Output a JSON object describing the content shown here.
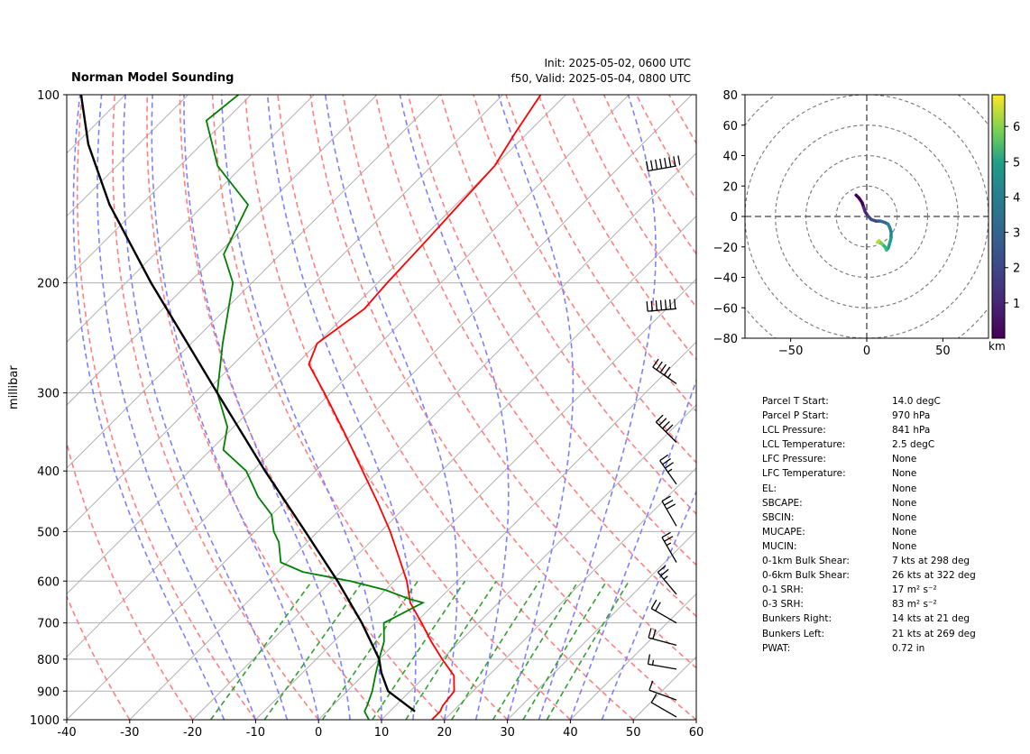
{
  "titles": {
    "left": "Norman Model Sounding",
    "init": "Init: 2025-05-02, 0600 UTC",
    "valid": "f50, Valid: 2025-05-04, 0800 UTC"
  },
  "axes": {
    "ylabel": "millibar",
    "colorbar_label": "km"
  },
  "stats": [
    {
      "label": "Parcel T Start:",
      "value": "14.0 degC"
    },
    {
      "label": "Parcel P Start:",
      "value": "970 hPa"
    },
    {
      "label": "LCL Pressure:",
      "value": "841 hPa"
    },
    {
      "label": "LCL Temperature:",
      "value": "2.5 degC"
    },
    {
      "label": "LFC Pressure:",
      "value": "None"
    },
    {
      "label": "LFC Temperature:",
      "value": "None"
    },
    {
      "label": "EL:",
      "value": "None"
    },
    {
      "label": "SBCAPE:",
      "value": "None"
    },
    {
      "label": "SBCIN:",
      "value": "None"
    },
    {
      "label": "MUCAPE:",
      "value": "None"
    },
    {
      "label": "MUCIN:",
      "value": "None"
    },
    {
      "label": "0-1km Bulk Shear:",
      "value": "7 kts at 298 deg"
    },
    {
      "label": "0-6km Bulk Shear:",
      "value": "26 kts at 322 deg"
    },
    {
      "label": "0-1 SRH:",
      "value": "17 m² s⁻²"
    },
    {
      "label": "0-3 SRH:",
      "value": "83 m² s⁻²"
    },
    {
      "label": "Bunkers Right:",
      "value": "14 kts at 21 deg"
    },
    {
      "label": "Bunkers Left:",
      "value": "21 kts at 269 deg"
    },
    {
      "label": "PWAT:",
      "value": "0.72 in"
    }
  ],
  "chart_data": [
    {
      "type": "line",
      "chart": "skew-t",
      "xlim": [
        -40,
        50
      ],
      "ylim": [
        1000,
        100
      ],
      "x_ticks": [
        -40,
        -30,
        -20,
        -10,
        0,
        10,
        20,
        30,
        40,
        50,
        60
      ],
      "y_ticks": [
        1000,
        900,
        800,
        700,
        600,
        500,
        400,
        300,
        200,
        100
      ],
      "grid": true,
      "colors": {
        "temperature": "#ff0000",
        "dewpoint": "#008000",
        "parcel": "#000000",
        "dry_adiabat": "#ff8080",
        "moist_adiabat": "#8080ff",
        "mixing_ratio": "#33a033",
        "isotherm": "#bbbbbb"
      },
      "series": [
        {
          "values_p": [
            1000,
            970,
            950,
            900,
            850,
            800,
            750,
            700,
            650,
            600,
            550,
            500,
            450,
            400,
            350,
            300,
            270,
            250,
            220,
            200,
            170,
            150,
            130,
            115,
            100
          ],
          "values_t": [
            18.0,
            18.0,
            17.5,
            17.0,
            14.5,
            10.0,
            5.5,
            1.0,
            -4.0,
            -8.0,
            -13.0,
            -18.5,
            -25.0,
            -32.5,
            -41.0,
            -51.0,
            -58.0,
            -60.0,
            -58.0,
            -58.5,
            -59.0,
            -59.5,
            -60.0,
            -62.0,
            -64.0
          ]
        },
        {
          "values_p": [
            1000,
            970,
            950,
            900,
            850,
            800,
            750,
            700,
            650,
            640,
            620,
            600,
            580,
            560,
            520,
            500,
            470,
            440,
            400,
            370,
            340,
            300,
            250,
            200,
            180,
            150,
            130,
            110,
            100
          ],
          "values_t": [
            8.0,
            6.0,
            5.5,
            4.0,
            2.0,
            0.0,
            -2.0,
            -5.0,
            -2.0,
            -5.0,
            -10.0,
            -17.0,
            -26.0,
            -31.0,
            -34.5,
            -37.0,
            -40.0,
            -45.0,
            -51.0,
            -58.0,
            -61.0,
            -68.0,
            -75.0,
            -83.0,
            -89.0,
            -93.0,
            -104.0,
            -113.0,
            -112.0
          ]
        },
        {
          "values_p": [
            970,
            900,
            841,
            800,
            700,
            600,
            500,
            400,
            300,
            200,
            150,
            120,
            100
          ],
          "values_t": [
            14.0,
            6.5,
            2.5,
            0.0,
            -8.5,
            -19.0,
            -32.0,
            -48.0,
            -68.0,
            -96.0,
            -115.0,
            -128.0,
            -137.0
          ]
        }
      ],
      "wind_barbs": [
        {
          "p": 130,
          "speed_kts": 80,
          "dir_deg": 260
        },
        {
          "p": 220,
          "speed_kts": 70,
          "dir_deg": 265
        },
        {
          "p": 290,
          "speed_kts": 45,
          "dir_deg": 305
        },
        {
          "p": 360,
          "speed_kts": 40,
          "dir_deg": 315
        },
        {
          "p": 420,
          "speed_kts": 35,
          "dir_deg": 325
        },
        {
          "p": 490,
          "speed_kts": 30,
          "dir_deg": 330
        },
        {
          "p": 560,
          "speed_kts": 25,
          "dir_deg": 330
        },
        {
          "p": 630,
          "speed_kts": 25,
          "dir_deg": 320
        },
        {
          "p": 700,
          "speed_kts": 20,
          "dir_deg": 300
        },
        {
          "p": 760,
          "speed_kts": 20,
          "dir_deg": 285
        },
        {
          "p": 830,
          "speed_kts": 15,
          "dir_deg": 280
        },
        {
          "p": 930,
          "speed_kts": 10,
          "dir_deg": 290
        },
        {
          "p": 990,
          "speed_kts": 10,
          "dir_deg": 300
        }
      ]
    },
    {
      "type": "line",
      "chart": "hodograph",
      "xlim": [
        -80,
        80
      ],
      "ylim": [
        -80,
        80
      ],
      "x_ticks": [
        -50,
        0,
        50
      ],
      "y_ticks": [
        -80,
        -60,
        -40,
        -20,
        0,
        20,
        40,
        60,
        80
      ],
      "rings": [
        20,
        40,
        60,
        80,
        100
      ],
      "colorbar": {
        "ticks": [
          1,
          2,
          3,
          4,
          5,
          6
        ],
        "range": [
          0,
          6.9
        ],
        "label": "km"
      },
      "u": [
        -7,
        -5,
        -3,
        -2,
        -1,
        1,
        3,
        6,
        9,
        12,
        14,
        15,
        16,
        16,
        15,
        14,
        13,
        12,
        10,
        8,
        7
      ],
      "v": [
        14,
        12,
        9,
        6,
        3,
        0,
        -2,
        -3,
        -3,
        -4,
        -5,
        -7,
        -10,
        -14,
        -18,
        -21,
        -22,
        -20,
        -18,
        -16,
        -17
      ],
      "heights_km": [
        0.0,
        0.2,
        0.5,
        0.8,
        1.1,
        1.4,
        1.7,
        2.0,
        2.3,
        2.6,
        2.9,
        3.1,
        3.3,
        3.5,
        3.7,
        3.9,
        4.3,
        4.8,
        5.4,
        6.0,
        6.6
      ]
    }
  ]
}
